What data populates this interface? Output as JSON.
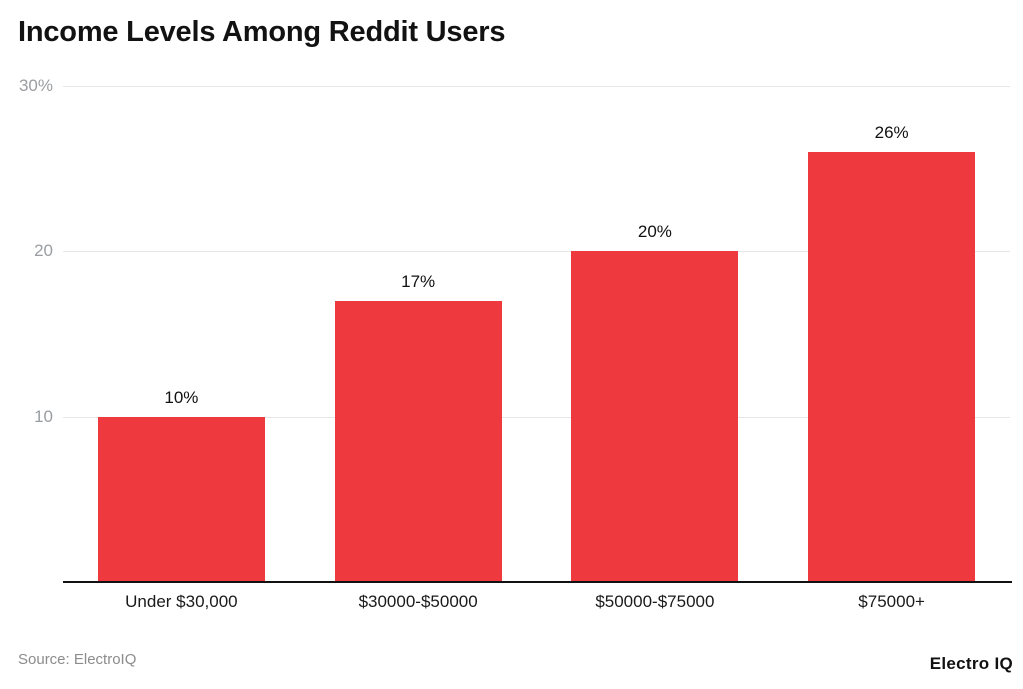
{
  "header": {
    "title": "Income Levels Among Reddit Users"
  },
  "footer": {
    "source": "Source: ElectroIQ",
    "logo": "Electro IQ"
  },
  "colors": {
    "bar": "#ee3a3e",
    "grid": "#e6e6e6",
    "axis": "#111111",
    "ytick_text": "#9a9da1",
    "xtick_text": "#1a1a1a",
    "value_text": "#111111",
    "source_text": "#8c8c8c",
    "background": "#ffffff"
  },
  "chart_data": {
    "type": "bar",
    "title": "Income Levels Among Reddit Users",
    "categories": [
      "Under $30,000",
      "$30000-$50000",
      "$50000-$75000",
      "$75000+"
    ],
    "values": [
      10,
      17,
      20,
      26
    ],
    "value_labels": [
      "10%",
      "17%",
      "20%",
      "26%"
    ],
    "xlabel": "",
    "ylabel": "",
    "ylim": [
      0,
      30
    ],
    "yticks": [
      {
        "value": 30,
        "label": "30%"
      },
      {
        "value": 20,
        "label": "20"
      },
      {
        "value": 10,
        "label": "10"
      }
    ],
    "grid": true,
    "legend": "none",
    "source": "Source: ElectroIQ",
    "brand": "Electro IQ"
  }
}
